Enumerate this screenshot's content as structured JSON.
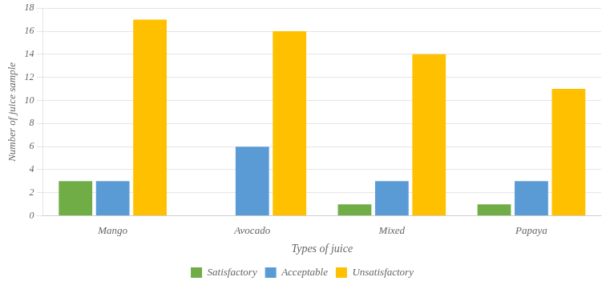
{
  "chart_data": {
    "type": "bar",
    "categories": [
      "Mango",
      "Avocado",
      "Mixed",
      "Papaya"
    ],
    "series": [
      {
        "name": "Satisfactory",
        "color": "#70ad47",
        "values": [
          3,
          0,
          1,
          1
        ]
      },
      {
        "name": "Acceptable",
        "color": "#5b9bd5",
        "values": [
          3,
          6,
          3,
          3
        ]
      },
      {
        "name": "Unsatisfactory",
        "color": "#ffc000",
        "values": [
          17,
          16,
          14,
          11
        ]
      }
    ],
    "xlabel": "Types of juice",
    "ylabel": "Number of juice sample",
    "ylim": [
      0,
      18
    ],
    "yticks": [
      0,
      2,
      4,
      6,
      8,
      10,
      12,
      14,
      16,
      18
    ],
    "grid": true,
    "legend": "bottom"
  }
}
